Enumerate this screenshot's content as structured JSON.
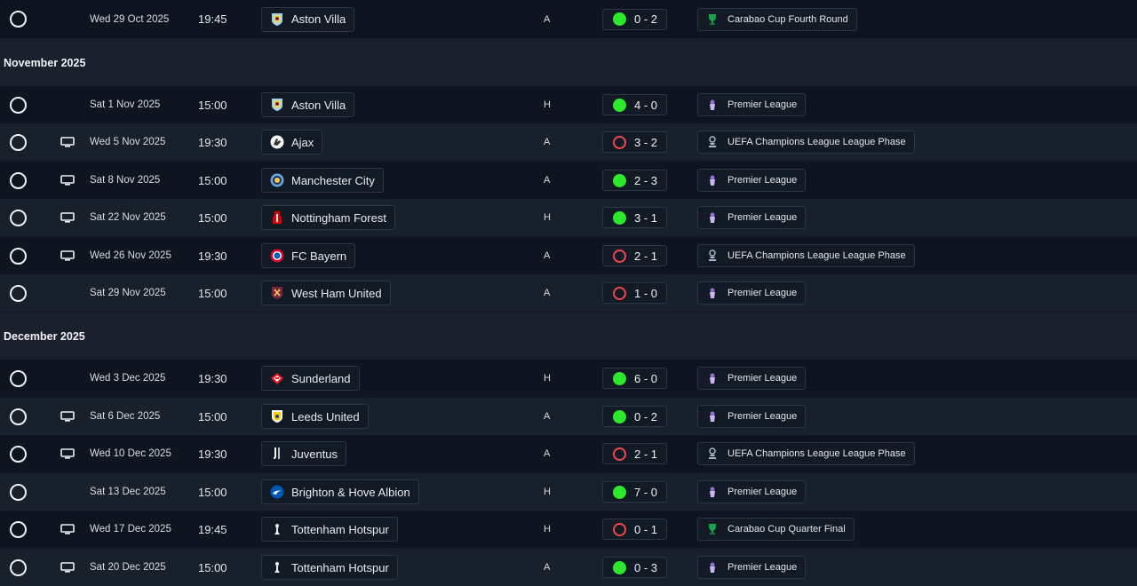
{
  "colors": {
    "win": "#2ee82e",
    "loss": "#f04848",
    "row_dark": "#0f1520",
    "row_light": "#18202c"
  },
  "months": {
    "november": "November 2025",
    "december": "December 2025"
  },
  "fixtures": [
    {
      "tv": false,
      "date": "Wed 29 Oct 2025",
      "time": "19:45",
      "team": "Aston Villa",
      "crest": "aston-villa-crest",
      "venue": "A",
      "result": "win",
      "score": "0 - 2",
      "competition": "Carabao Cup Fourth Round",
      "comp_icon": "carabao-cup-icon"
    },
    {
      "tv": false,
      "date": "Sat 1 Nov 2025",
      "time": "15:00",
      "team": "Aston Villa",
      "crest": "aston-villa-crest",
      "venue": "H",
      "result": "win",
      "score": "4 - 0",
      "competition": "Premier League",
      "comp_icon": "premier-league-icon"
    },
    {
      "tv": true,
      "date": "Wed 5 Nov 2025",
      "time": "19:30",
      "team": "Ajax",
      "crest": "ajax-crest",
      "venue": "A",
      "result": "loss",
      "score": "3 - 2",
      "competition": "UEFA Champions League League Phase",
      "comp_icon": "champions-league-icon"
    },
    {
      "tv": true,
      "date": "Sat 8 Nov 2025",
      "time": "15:00",
      "team": "Manchester City",
      "crest": "man-city-crest",
      "venue": "A",
      "result": "win",
      "score": "2 - 3",
      "competition": "Premier League",
      "comp_icon": "premier-league-icon"
    },
    {
      "tv": true,
      "date": "Sat 22 Nov 2025",
      "time": "15:00",
      "team": "Nottingham Forest",
      "crest": "nottingham-forest-crest",
      "venue": "H",
      "result": "win",
      "score": "3 - 1",
      "competition": "Premier League",
      "comp_icon": "premier-league-icon"
    },
    {
      "tv": true,
      "date": "Wed 26 Nov 2025",
      "time": "19:30",
      "team": "FC Bayern",
      "crest": "bayern-crest",
      "venue": "A",
      "result": "loss",
      "score": "2 - 1",
      "competition": "UEFA Champions League League Phase",
      "comp_icon": "champions-league-icon"
    },
    {
      "tv": false,
      "date": "Sat 29 Nov 2025",
      "time": "15:00",
      "team": "West Ham United",
      "crest": "west-ham-crest",
      "venue": "A",
      "result": "loss",
      "score": "1 - 0",
      "competition": "Premier League",
      "comp_icon": "premier-league-icon"
    },
    {
      "tv": false,
      "date": "Wed 3 Dec 2025",
      "time": "19:30",
      "team": "Sunderland",
      "crest": "sunderland-crest",
      "venue": "H",
      "result": "win",
      "score": "6 - 0",
      "competition": "Premier League",
      "comp_icon": "premier-league-icon"
    },
    {
      "tv": true,
      "date": "Sat 6 Dec 2025",
      "time": "15:00",
      "team": "Leeds United",
      "crest": "leeds-crest",
      "venue": "A",
      "result": "win",
      "score": "0 - 2",
      "competition": "Premier League",
      "comp_icon": "premier-league-icon"
    },
    {
      "tv": true,
      "date": "Wed 10 Dec 2025",
      "time": "19:30",
      "team": "Juventus",
      "crest": "juventus-crest",
      "venue": "A",
      "result": "loss",
      "score": "2 - 1",
      "competition": "UEFA Champions League League Phase",
      "comp_icon": "champions-league-icon"
    },
    {
      "tv": false,
      "date": "Sat 13 Dec 2025",
      "time": "15:00",
      "team": "Brighton & Hove Albion",
      "crest": "brighton-crest",
      "venue": "H",
      "result": "win",
      "score": "7 - 0",
      "competition": "Premier League",
      "comp_icon": "premier-league-icon"
    },
    {
      "tv": true,
      "date": "Wed 17 Dec 2025",
      "time": "19:45",
      "team": "Tottenham Hotspur",
      "crest": "tottenham-crest",
      "venue": "H",
      "result": "loss",
      "score": "0 - 1",
      "competition": "Carabao Cup Quarter Final",
      "comp_icon": "carabao-cup-icon"
    },
    {
      "tv": true,
      "date": "Sat 20 Dec 2025",
      "time": "15:00",
      "team": "Tottenham Hotspur",
      "crest": "tottenham-crest",
      "venue": "A",
      "result": "win",
      "score": "0 - 3",
      "competition": "Premier League",
      "comp_icon": "premier-league-icon"
    }
  ]
}
